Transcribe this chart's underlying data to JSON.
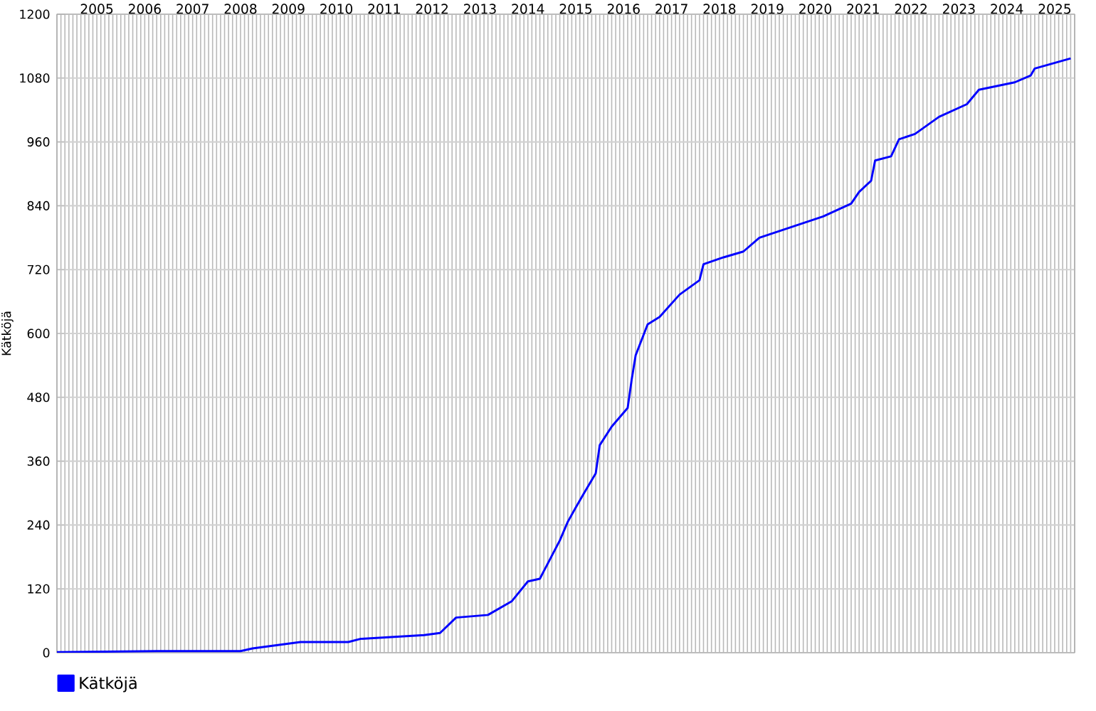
{
  "chart_data": {
    "type": "line",
    "ylabel": "Kätköjä",
    "x": [
      "2004-09",
      "2006-10",
      "2008-07",
      "2008-10",
      "2009-10",
      "2010-10",
      "2011-01",
      "2012-05",
      "2012-09",
      "2013-01",
      "2013-09",
      "2014-03",
      "2014-07",
      "2014-10",
      "2015-03",
      "2015-05",
      "2015-07",
      "2015-09",
      "2015-12",
      "2016-01",
      "2016-04",
      "2016-08",
      "2016-09",
      "2016-10",
      "2017-01",
      "2017-04",
      "2017-09",
      "2018-02",
      "2018-03",
      "2018-08",
      "2019-01",
      "2019-05",
      "2020-09",
      "2021-04",
      "2021-06",
      "2021-09",
      "2021-10",
      "2022-02",
      "2022-04",
      "2022-08",
      "2023-02",
      "2023-09",
      "2023-12",
      "2024-09",
      "2025-01",
      "2025-02",
      "2025-11"
    ],
    "series": [
      {
        "name": "Kätköjä",
        "color": "#0000ff",
        "values": [
          1,
          3,
          3,
          8,
          20,
          20,
          26,
          33,
          37,
          66,
          71,
          97,
          134,
          139,
          211,
          246,
          273,
          299,
          337,
          390,
          425,
          460,
          513,
          559,
          617,
          631,
          673,
          700,
          730,
          743,
          754,
          780,
          820,
          844,
          866,
          887,
          925,
          933,
          965,
          975,
          1007,
          1031,
          1058,
          1072,
          1085,
          1098,
          1117
        ]
      }
    ],
    "xlim": [
      "2004-09",
      "2025-12"
    ],
    "xticks": [
      {
        "value": "2005-07",
        "label": "2005"
      },
      {
        "value": "2006-07",
        "label": "2006"
      },
      {
        "value": "2007-07",
        "label": "2007"
      },
      {
        "value": "2008-07",
        "label": "2008"
      },
      {
        "value": "2009-07",
        "label": "2009"
      },
      {
        "value": "2010-07",
        "label": "2010"
      },
      {
        "value": "2011-07",
        "label": "2011"
      },
      {
        "value": "2012-07",
        "label": "2012"
      },
      {
        "value": "2013-07",
        "label": "2013"
      },
      {
        "value": "2014-07",
        "label": "2014"
      },
      {
        "value": "2015-07",
        "label": "2015"
      },
      {
        "value": "2016-07",
        "label": "2016"
      },
      {
        "value": "2017-07",
        "label": "2017"
      },
      {
        "value": "2018-07",
        "label": "2018"
      },
      {
        "value": "2019-07",
        "label": "2019"
      },
      {
        "value": "2020-07",
        "label": "2020"
      },
      {
        "value": "2021-07",
        "label": "2021"
      },
      {
        "value": "2022-07",
        "label": "2022"
      },
      {
        "value": "2023-07",
        "label": "2023"
      },
      {
        "value": "2024-07",
        "label": "2024"
      },
      {
        "value": "2025-07",
        "label": "2025"
      }
    ],
    "ylim": [
      0,
      1200
    ],
    "yticks": [
      0,
      120,
      240,
      360,
      480,
      600,
      720,
      840,
      960,
      1080,
      1200
    ],
    "grid": true,
    "legend": "bottom left",
    "marker": "none",
    "line_style": "solid"
  }
}
